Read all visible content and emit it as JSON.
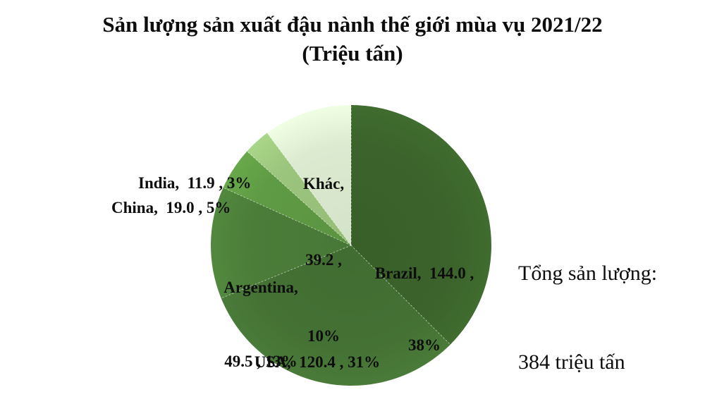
{
  "title": {
    "line1": "Sản lượng sản xuất đậu nành thế giới mùa vụ 2021/22",
    "line2": "(Triệu tấn)"
  },
  "total_note": {
    "line1": "Tổng sản lượng:",
    "line2": "384 triệu tấn"
  },
  "labels": {
    "india": {
      "line1": "India,  11.9 , 3%"
    },
    "china": {
      "line1": "China,  19.0 , 5%"
    },
    "khac": {
      "line1": "Khác,",
      "line2": "39.2 ,",
      "line3": "10%"
    },
    "brazil": {
      "line1": "Brazil,  144.0 ,",
      "line2": "38%"
    },
    "argentina": {
      "line1": "Argentina,",
      "line2": "49.5 , 13%"
    },
    "usa": {
      "line1": "USA,  120.4 , 31%"
    }
  },
  "chart_data": {
    "type": "pie",
    "title": "Sản lượng sản xuất đậu nành thế giới mùa vụ 2021/22 (Triệu tấn)",
    "unit": "Triệu tấn",
    "total": 384,
    "start_angle_deg": 0,
    "direction": "clockwise",
    "legend_position": "none",
    "slices": [
      {
        "key": "brazil",
        "name": "Brazil",
        "value": 144.0,
        "pct": 38,
        "color": "#3b632b"
      },
      {
        "key": "usa",
        "name": "USA",
        "value": 120.4,
        "pct": 31,
        "color": "#447134"
      },
      {
        "key": "argentina",
        "name": "Argentina",
        "value": 49.5,
        "pct": 13,
        "color": "#4b7d39"
      },
      {
        "key": "china",
        "name": "China",
        "value": 19.0,
        "pct": 5,
        "color": "#5f9a44"
      },
      {
        "key": "india",
        "name": "India",
        "value": 11.9,
        "pct": 3,
        "color": "#9bc47d"
      },
      {
        "key": "khac",
        "name": "Khác",
        "value": 39.2,
        "pct": 10,
        "color": "#dcebd0"
      }
    ],
    "separator_color": "#ffffff"
  }
}
